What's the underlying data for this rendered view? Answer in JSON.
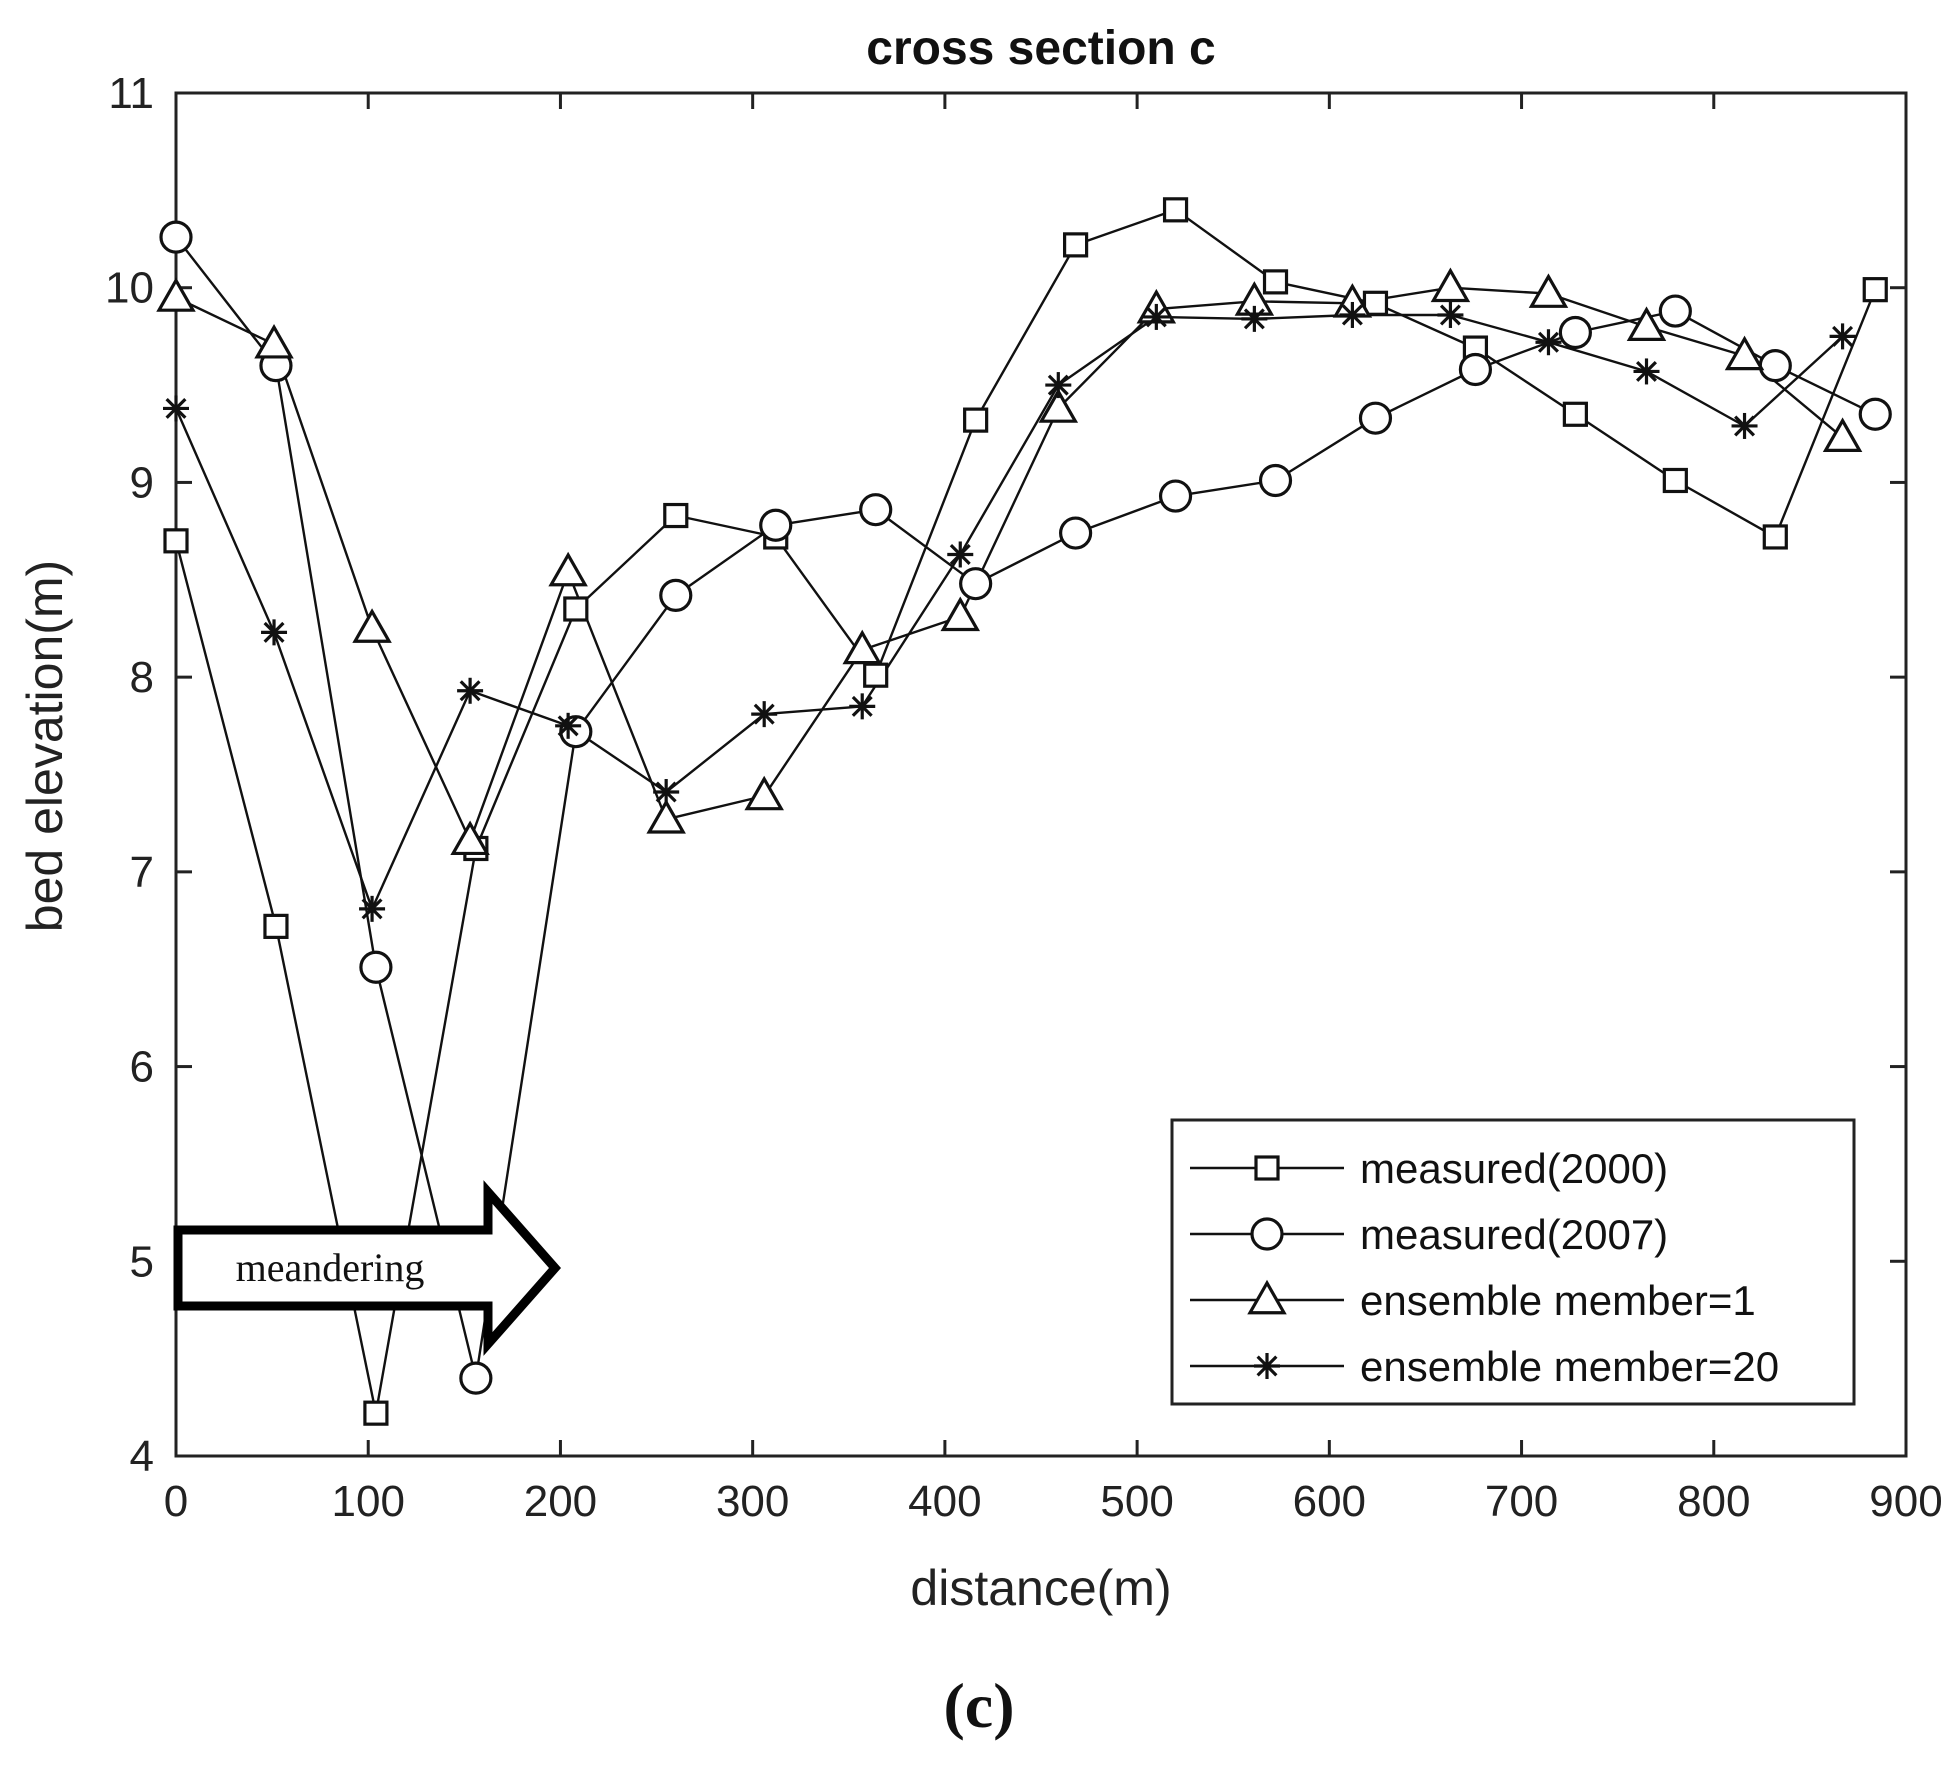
{
  "chart_data": {
    "type": "line",
    "title": "cross section c",
    "xlabel": "distance(m)",
    "ylabel": "bed elevation(m)",
    "xlim": [
      0,
      900
    ],
    "ylim": [
      4,
      11
    ],
    "xticks": [
      0,
      100,
      200,
      300,
      400,
      500,
      600,
      700,
      800,
      900
    ],
    "yticks": [
      4,
      5,
      6,
      7,
      8,
      9,
      10,
      11
    ],
    "grid": false,
    "legend_position": "bottom-right",
    "series": [
      {
        "name": "measured(2000)",
        "marker": "square",
        "points": [
          [
            0,
            8.7
          ],
          [
            52,
            6.72
          ],
          [
            104,
            4.22
          ],
          [
            156,
            7.12
          ],
          [
            208,
            8.35
          ],
          [
            260,
            8.83
          ],
          [
            312,
            8.72
          ],
          [
            364,
            8.01
          ],
          [
            416,
            9.32
          ],
          [
            468,
            10.22
          ],
          [
            520,
            10.4
          ],
          [
            572,
            10.03
          ],
          [
            624,
            9.92
          ],
          [
            676,
            9.69
          ],
          [
            728,
            9.35
          ],
          [
            780,
            9.01
          ],
          [
            832,
            8.72
          ],
          [
            884,
            9.99
          ]
        ]
      },
      {
        "name": "measured(2007)",
        "marker": "circle",
        "points": [
          [
            0,
            10.26
          ],
          [
            52,
            9.6
          ],
          [
            104,
            6.51
          ],
          [
            156,
            4.4
          ],
          [
            208,
            7.72
          ],
          [
            260,
            8.42
          ],
          [
            312,
            8.78
          ],
          [
            364,
            8.86
          ],
          [
            416,
            8.48
          ],
          [
            468,
            8.74
          ],
          [
            520,
            8.93
          ],
          [
            572,
            9.01
          ],
          [
            624,
            9.33
          ],
          [
            676,
            9.58
          ],
          [
            728,
            9.77
          ],
          [
            780,
            9.88
          ],
          [
            832,
            9.6
          ],
          [
            884,
            9.35
          ]
        ]
      },
      {
        "name": "ensemble member=1",
        "marker": "triangle",
        "points": [
          [
            0,
            9.95
          ],
          [
            51,
            9.71
          ],
          [
            102,
            8.25
          ],
          [
            153,
            7.16
          ],
          [
            204,
            8.54
          ],
          [
            255,
            7.27
          ],
          [
            306,
            7.39
          ],
          [
            357,
            8.14
          ],
          [
            408,
            8.31
          ],
          [
            459,
            9.38
          ],
          [
            510,
            9.89
          ],
          [
            561,
            9.93
          ],
          [
            612,
            9.92
          ],
          [
            663,
            10.0
          ],
          [
            714,
            9.97
          ],
          [
            765,
            9.8
          ],
          [
            816,
            9.65
          ],
          [
            867,
            9.23
          ]
        ]
      },
      {
        "name": "ensemble member=20",
        "marker": "asterisk",
        "points": [
          [
            0,
            9.38
          ],
          [
            51,
            8.23
          ],
          [
            102,
            6.81
          ],
          [
            153,
            7.93
          ],
          [
            204,
            7.75
          ],
          [
            255,
            7.41
          ],
          [
            306,
            7.81
          ],
          [
            357,
            7.85
          ],
          [
            408,
            8.63
          ],
          [
            459,
            9.5
          ],
          [
            510,
            9.85
          ],
          [
            561,
            9.84
          ],
          [
            612,
            9.86
          ],
          [
            663,
            9.86
          ],
          [
            714,
            9.72
          ],
          [
            765,
            9.57
          ],
          [
            816,
            9.29
          ],
          [
            867,
            9.75
          ]
        ]
      }
    ],
    "annotations": [
      {
        "text": "meandering",
        "shape": "right-arrow"
      }
    ],
    "panel_label": "(c)"
  }
}
